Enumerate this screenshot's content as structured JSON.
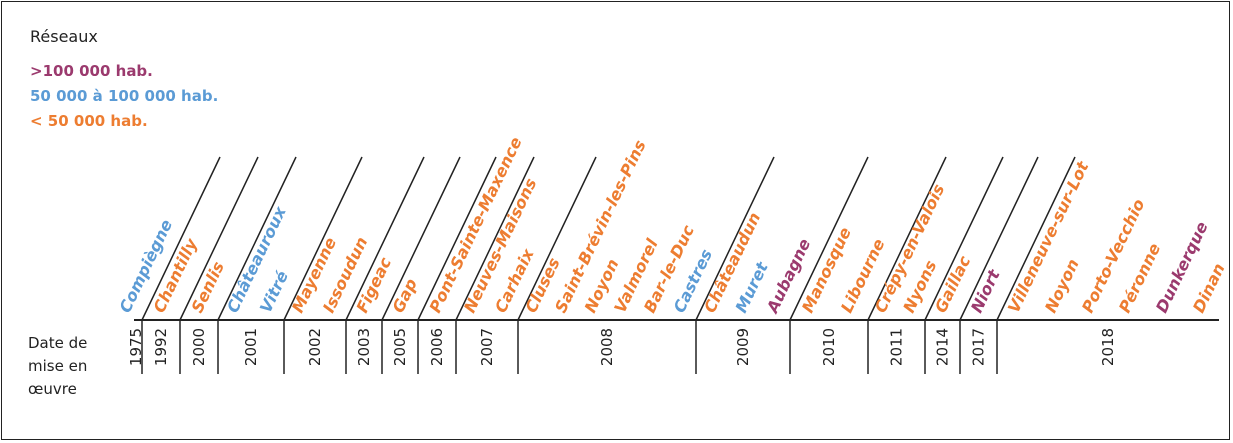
{
  "legend": {
    "title": "Réseaux",
    "items": [
      {
        "label": ">100 000 hab.",
        "color": "#9b3a6e"
      },
      {
        "label": "50 000 à 100 000 hab.",
        "color": "#5b9bd5"
      },
      {
        "label": "< 50 000 hab.",
        "color": "#ed7d31"
      }
    ]
  },
  "axis_title": [
    "Date de",
    "mise en",
    "œuvre"
  ],
  "colors": {
    "large": "#9b3a6e",
    "medium": "#5b9bd5",
    "small": "#ed7d31",
    "line": "#222222"
  },
  "years": [
    {
      "year": "1975",
      "cities": [
        {
          "name": "Compiègne",
          "cat": "medium"
        }
      ]
    },
    {
      "year": "1992",
      "cities": [
        {
          "name": "Chantilly",
          "cat": "small"
        }
      ]
    },
    {
      "year": "2000",
      "cities": [
        {
          "name": "Senlis",
          "cat": "small"
        }
      ]
    },
    {
      "year": "2001",
      "cities": [
        {
          "name": "Châteauroux",
          "cat": "medium"
        },
        {
          "name": "Vitré",
          "cat": "medium"
        }
      ]
    },
    {
      "year": "2002",
      "cities": [
        {
          "name": "Mayenne",
          "cat": "small"
        },
        {
          "name": "Issoudun",
          "cat": "small"
        }
      ]
    },
    {
      "year": "2003",
      "cities": [
        {
          "name": "Figeac",
          "cat": "small"
        }
      ]
    },
    {
      "year": "2005",
      "cities": [
        {
          "name": "Gap",
          "cat": "small"
        }
      ]
    },
    {
      "year": "2006",
      "cities": [
        {
          "name": "Pont-Sainte-Maxence",
          "cat": "small"
        }
      ]
    },
    {
      "year": "2007",
      "cities": [
        {
          "name": "Neuves-Maisons",
          "cat": "small"
        },
        {
          "name": "Carhaix",
          "cat": "small"
        }
      ]
    },
    {
      "year": "2008",
      "cities": [
        {
          "name": "Cluses",
          "cat": "small"
        },
        {
          "name": "Saint-Brévin-les-Pins",
          "cat": "small"
        },
        {
          "name": "Noyon",
          "cat": "small"
        },
        {
          "name": "Valmorel",
          "cat": "small"
        },
        {
          "name": "Bar-le-Duc",
          "cat": "small"
        },
        {
          "name": "Castres",
          "cat": "medium"
        }
      ]
    },
    {
      "year": "2009",
      "cities": [
        {
          "name": "Châteaudun",
          "cat": "small"
        },
        {
          "name": "Muret",
          "cat": "medium"
        },
        {
          "name": "Aubagne",
          "cat": "large"
        }
      ]
    },
    {
      "year": "2010",
      "cities": [
        {
          "name": "Manosque",
          "cat": "small"
        },
        {
          "name": "Libourne",
          "cat": "small"
        }
      ]
    },
    {
      "year": "2011",
      "cities": [
        {
          "name": "Crépy-en-Valois",
          "cat": "small"
        },
        {
          "name": "Nyons",
          "cat": "small"
        }
      ]
    },
    {
      "year": "2014",
      "cities": [
        {
          "name": "Gaillac",
          "cat": "small"
        }
      ]
    },
    {
      "year": "2017",
      "cities": [
        {
          "name": "Niort",
          "cat": "large"
        }
      ]
    },
    {
      "year": "2018",
      "cities": [
        {
          "name": "Villeneuve-sur-Lot",
          "cat": "small"
        },
        {
          "name": "Noyon",
          "cat": "small"
        },
        {
          "name": "Porto-Vecchio",
          "cat": "small"
        },
        {
          "name": "Péronne",
          "cat": "small"
        },
        {
          "name": "Dunkerque",
          "cat": "large"
        },
        {
          "name": "Dinan",
          "cat": "small"
        }
      ]
    }
  ]
}
